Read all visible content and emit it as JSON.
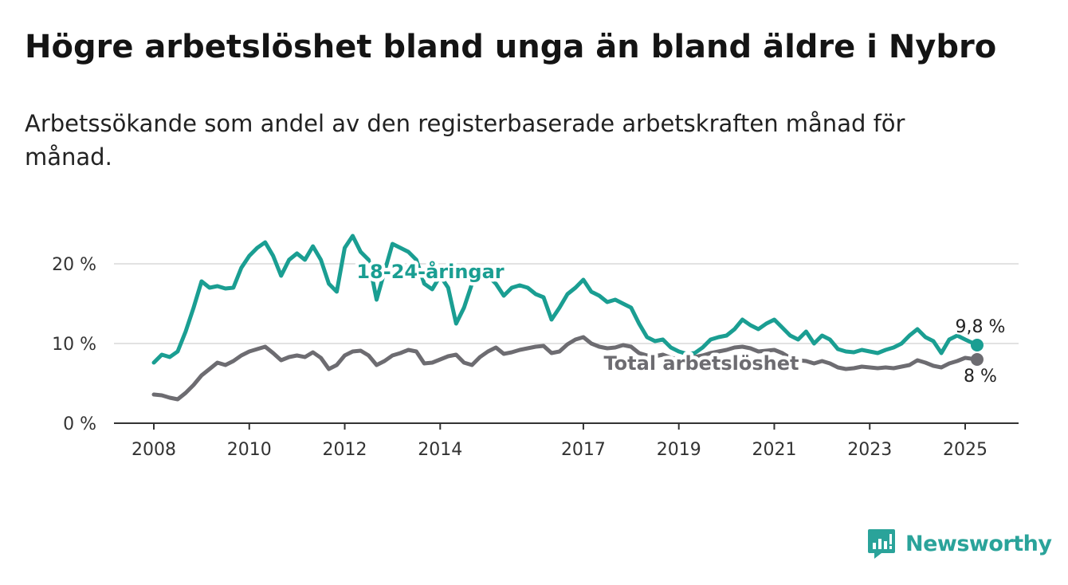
{
  "title": "Högre arbetslöshet bland unga än bland äldre i Nybro",
  "subtitle": "Arbetssökande som andel av den registerbaserade arbetskraften månad för månad.",
  "brand": {
    "name": "Newsworthy",
    "icon": "newsworthy-logo-icon",
    "color": "#2aa39a"
  },
  "chart_data": {
    "type": "line",
    "x_ticks": [
      "2008",
      "2010",
      "2012",
      "2014",
      "2017",
      "2019",
      "2021",
      "2023",
      "2025"
    ],
    "y_ticks": [
      0,
      10,
      20
    ],
    "y_tick_labels": [
      "0 %",
      "10 %",
      "20 %"
    ],
    "ylim": [
      0,
      25
    ],
    "xlim": [
      "2007-01",
      "2026-01"
    ],
    "grid": true,
    "series": [
      {
        "name": "18-24-åringar",
        "color": "#1a9e92",
        "end_label": "9,8 %",
        "points": [
          [
            "2008-01",
            7.6
          ],
          [
            "2008-03",
            8.6
          ],
          [
            "2008-05",
            8.3
          ],
          [
            "2008-07",
            9.0
          ],
          [
            "2008-09",
            11.5
          ],
          [
            "2008-11",
            14.5
          ],
          [
            "2009-01",
            17.8
          ],
          [
            "2009-03",
            17.0
          ],
          [
            "2009-05",
            17.2
          ],
          [
            "2009-07",
            16.9
          ],
          [
            "2009-09",
            17.0
          ],
          [
            "2009-11",
            19.5
          ],
          [
            "2010-01",
            21.0
          ],
          [
            "2010-03",
            22.0
          ],
          [
            "2010-05",
            22.7
          ],
          [
            "2010-07",
            21.0
          ],
          [
            "2010-09",
            18.5
          ],
          [
            "2010-11",
            20.5
          ],
          [
            "2011-01",
            21.3
          ],
          [
            "2011-03",
            20.5
          ],
          [
            "2011-05",
            22.2
          ],
          [
            "2011-07",
            20.5
          ],
          [
            "2011-09",
            17.5
          ],
          [
            "2011-11",
            16.5
          ],
          [
            "2012-01",
            22.0
          ],
          [
            "2012-03",
            23.5
          ],
          [
            "2012-05",
            21.5
          ],
          [
            "2012-07",
            20.5
          ],
          [
            "2012-09",
            15.5
          ],
          [
            "2012-11",
            19.0
          ],
          [
            "2013-01",
            22.5
          ],
          [
            "2013-03",
            22.0
          ],
          [
            "2013-05",
            21.5
          ],
          [
            "2013-07",
            20.5
          ],
          [
            "2013-09",
            17.5
          ],
          [
            "2013-11",
            16.8
          ],
          [
            "2014-01",
            18.5
          ],
          [
            "2014-03",
            17.0
          ],
          [
            "2014-05",
            12.5
          ],
          [
            "2014-07",
            14.5
          ],
          [
            "2014-09",
            17.5
          ],
          [
            "2014-11",
            18.0
          ],
          [
            "2015-01",
            18.5
          ],
          [
            "2015-03",
            17.5
          ],
          [
            "2015-05",
            16.0
          ],
          [
            "2015-07",
            17.0
          ],
          [
            "2015-09",
            17.3
          ],
          [
            "2015-11",
            17.0
          ],
          [
            "2016-01",
            16.2
          ],
          [
            "2016-03",
            15.8
          ],
          [
            "2016-05",
            13.0
          ],
          [
            "2016-07",
            14.5
          ],
          [
            "2016-09",
            16.2
          ],
          [
            "2016-11",
            17.0
          ],
          [
            "2017-01",
            18.0
          ],
          [
            "2017-03",
            16.5
          ],
          [
            "2017-05",
            16.0
          ],
          [
            "2017-07",
            15.2
          ],
          [
            "2017-09",
            15.5
          ],
          [
            "2017-11",
            15.0
          ],
          [
            "2018-01",
            14.5
          ],
          [
            "2018-03",
            12.5
          ],
          [
            "2018-05",
            10.8
          ],
          [
            "2018-07",
            10.3
          ],
          [
            "2018-09",
            10.5
          ],
          [
            "2018-11",
            9.5
          ],
          [
            "2019-01",
            9.0
          ],
          [
            "2019-03",
            8.7
          ],
          [
            "2019-05",
            8.8
          ],
          [
            "2019-07",
            9.5
          ],
          [
            "2019-09",
            10.5
          ],
          [
            "2019-11",
            10.8
          ],
          [
            "2020-01",
            11.0
          ],
          [
            "2020-03",
            11.8
          ],
          [
            "2020-05",
            13.0
          ],
          [
            "2020-07",
            12.3
          ],
          [
            "2020-09",
            11.8
          ],
          [
            "2020-11",
            12.5
          ],
          [
            "2021-01",
            13.0
          ],
          [
            "2021-03",
            12.0
          ],
          [
            "2021-05",
            11.0
          ],
          [
            "2021-07",
            10.5
          ],
          [
            "2021-09",
            11.5
          ],
          [
            "2021-11",
            10.0
          ],
          [
            "2022-01",
            11.0
          ],
          [
            "2022-03",
            10.5
          ],
          [
            "2022-05",
            9.3
          ],
          [
            "2022-07",
            9.0
          ],
          [
            "2022-09",
            8.9
          ],
          [
            "2022-11",
            9.2
          ],
          [
            "2023-01",
            9.0
          ],
          [
            "2023-03",
            8.8
          ],
          [
            "2023-05",
            9.2
          ],
          [
            "2023-07",
            9.5
          ],
          [
            "2023-09",
            10.0
          ],
          [
            "2023-11",
            11.0
          ],
          [
            "2024-01",
            11.8
          ],
          [
            "2024-03",
            10.8
          ],
          [
            "2024-05",
            10.3
          ],
          [
            "2024-07",
            8.8
          ],
          [
            "2024-09",
            10.5
          ],
          [
            "2024-11",
            11.0
          ],
          [
            "2025-01",
            10.5
          ],
          [
            "2025-04",
            9.8
          ]
        ]
      },
      {
        "name": "Total arbetslöshet",
        "color": "#6d6c71",
        "end_label": "8 %",
        "points": [
          [
            "2008-01",
            3.6
          ],
          [
            "2008-03",
            3.5
          ],
          [
            "2008-05",
            3.2
          ],
          [
            "2008-07",
            3.0
          ],
          [
            "2008-09",
            3.8
          ],
          [
            "2008-11",
            4.8
          ],
          [
            "2009-01",
            6.0
          ],
          [
            "2009-03",
            6.8
          ],
          [
            "2009-05",
            7.6
          ],
          [
            "2009-07",
            7.3
          ],
          [
            "2009-09",
            7.8
          ],
          [
            "2009-11",
            8.5
          ],
          [
            "2010-01",
            9.0
          ],
          [
            "2010-03",
            9.3
          ],
          [
            "2010-05",
            9.6
          ],
          [
            "2010-07",
            8.8
          ],
          [
            "2010-09",
            7.9
          ],
          [
            "2010-11",
            8.3
          ],
          [
            "2011-01",
            8.5
          ],
          [
            "2011-03",
            8.3
          ],
          [
            "2011-05",
            8.9
          ],
          [
            "2011-07",
            8.2
          ],
          [
            "2011-09",
            6.8
          ],
          [
            "2011-11",
            7.3
          ],
          [
            "2012-01",
            8.5
          ],
          [
            "2012-03",
            9.0
          ],
          [
            "2012-05",
            9.1
          ],
          [
            "2012-07",
            8.5
          ],
          [
            "2012-09",
            7.3
          ],
          [
            "2012-11",
            7.8
          ],
          [
            "2013-01",
            8.5
          ],
          [
            "2013-03",
            8.8
          ],
          [
            "2013-05",
            9.2
          ],
          [
            "2013-07",
            9.0
          ],
          [
            "2013-09",
            7.5
          ],
          [
            "2013-11",
            7.6
          ],
          [
            "2014-01",
            8.0
          ],
          [
            "2014-03",
            8.4
          ],
          [
            "2014-05",
            8.6
          ],
          [
            "2014-07",
            7.6
          ],
          [
            "2014-09",
            7.3
          ],
          [
            "2014-11",
            8.3
          ],
          [
            "2015-01",
            9.0
          ],
          [
            "2015-03",
            9.5
          ],
          [
            "2015-05",
            8.7
          ],
          [
            "2015-07",
            8.9
          ],
          [
            "2015-09",
            9.2
          ],
          [
            "2015-11",
            9.4
          ],
          [
            "2016-01",
            9.6
          ],
          [
            "2016-03",
            9.7
          ],
          [
            "2016-05",
            8.8
          ],
          [
            "2016-07",
            9.0
          ],
          [
            "2016-09",
            9.9
          ],
          [
            "2016-11",
            10.5
          ],
          [
            "2017-01",
            10.8
          ],
          [
            "2017-03",
            10.0
          ],
          [
            "2017-05",
            9.6
          ],
          [
            "2017-07",
            9.4
          ],
          [
            "2017-09",
            9.5
          ],
          [
            "2017-11",
            9.8
          ],
          [
            "2018-01",
            9.6
          ],
          [
            "2018-03",
            8.8
          ],
          [
            "2018-05",
            8.5
          ],
          [
            "2018-07",
            8.4
          ],
          [
            "2018-09",
            8.6
          ],
          [
            "2018-11",
            8.2
          ],
          [
            "2019-01",
            8.0
          ],
          [
            "2019-03",
            8.2
          ],
          [
            "2019-05",
            8.3
          ],
          [
            "2019-07",
            8.5
          ],
          [
            "2019-09",
            8.8
          ],
          [
            "2019-11",
            9.0
          ],
          [
            "2020-01",
            9.2
          ],
          [
            "2020-03",
            9.5
          ],
          [
            "2020-05",
            9.6
          ],
          [
            "2020-07",
            9.4
          ],
          [
            "2020-09",
            9.0
          ],
          [
            "2020-11",
            9.1
          ],
          [
            "2021-01",
            9.2
          ],
          [
            "2021-03",
            8.8
          ],
          [
            "2021-05",
            8.2
          ],
          [
            "2021-07",
            7.9
          ],
          [
            "2021-09",
            7.8
          ],
          [
            "2021-11",
            7.5
          ],
          [
            "2022-01",
            7.8
          ],
          [
            "2022-03",
            7.5
          ],
          [
            "2022-05",
            7.0
          ],
          [
            "2022-07",
            6.8
          ],
          [
            "2022-09",
            6.9
          ],
          [
            "2022-11",
            7.1
          ],
          [
            "2023-01",
            7.0
          ],
          [
            "2023-03",
            6.9
          ],
          [
            "2023-05",
            7.0
          ],
          [
            "2023-07",
            6.9
          ],
          [
            "2023-09",
            7.1
          ],
          [
            "2023-11",
            7.3
          ],
          [
            "2024-01",
            7.9
          ],
          [
            "2024-03",
            7.6
          ],
          [
            "2024-05",
            7.2
          ],
          [
            "2024-07",
            7.0
          ],
          [
            "2024-09",
            7.5
          ],
          [
            "2024-11",
            7.8
          ],
          [
            "2025-01",
            8.2
          ],
          [
            "2025-04",
            8.0
          ]
        ]
      }
    ]
  }
}
